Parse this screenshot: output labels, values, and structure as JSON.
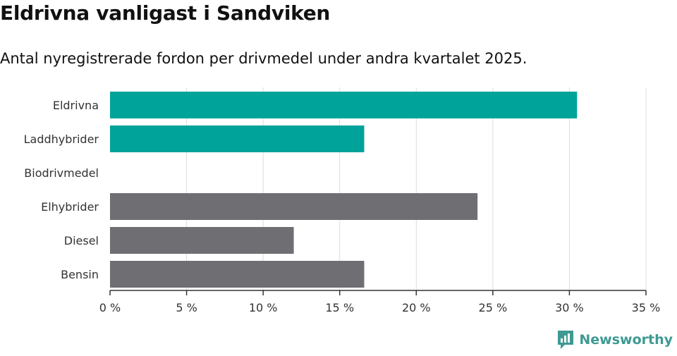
{
  "header": {
    "title": "Eldrivna vanligast i Sandviken",
    "subtitle": "Antal nyregistrerade fordon per drivmedel under andra kvartalet 2025."
  },
  "brand": {
    "name": "Newsworthy",
    "icon": "newsworthy-logo-icon"
  },
  "colors": {
    "highlight": "#00a39a",
    "neutral": "#6e6e73",
    "grid": "#dddddd",
    "axis": "#333333"
  },
  "chart_data": {
    "type": "bar",
    "orientation": "horizontal",
    "title": "Eldrivna vanligast i Sandviken",
    "subtitle": "Antal nyregistrerade fordon per drivmedel under andra kvartalet 2025.",
    "categories": [
      "Eldrivna",
      "Laddhybrider",
      "Biodrivmedel",
      "Elhybrider",
      "Diesel",
      "Bensin"
    ],
    "values": [
      30.5,
      16.6,
      0,
      24.0,
      12.0,
      16.6
    ],
    "highlight": [
      true,
      true,
      false,
      false,
      false,
      false
    ],
    "xlim": [
      0,
      35
    ],
    "xticks": [
      0,
      5,
      10,
      15,
      20,
      25,
      30,
      35
    ],
    "xtick_labels": [
      "0 %",
      "5 %",
      "10 %",
      "15 %",
      "20 %",
      "25 %",
      "30 %",
      "35 %"
    ],
    "grid": true,
    "legend": "none"
  }
}
